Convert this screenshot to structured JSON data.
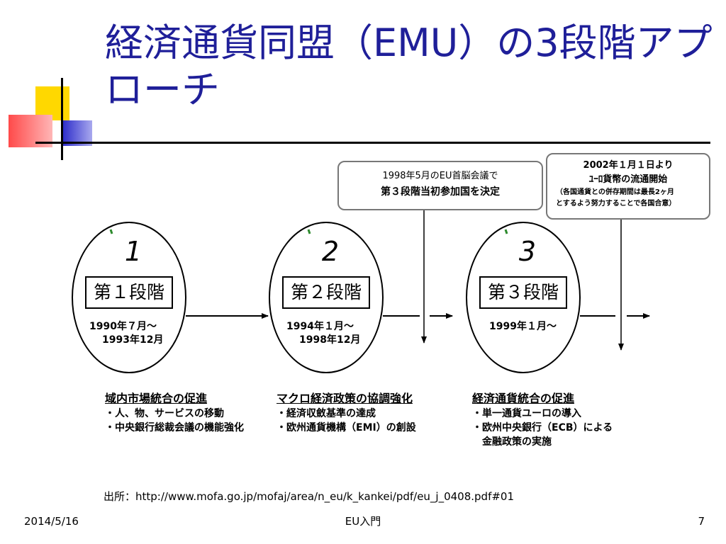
{
  "title": "経済通貨同盟（EMU）の3段階アプローチ",
  "callouts": {
    "c1_line1": "1998年5月のEU首脳会議で",
    "c1_line2": "第３段階当初参加国を決定",
    "c2_line1": "2002年１月１日より",
    "c2_line2": "ﾕｰﾛ貨幣の流通開始",
    "c2_line3": "（各国通貨との併存期間は最長2ヶ月",
    "c2_line4": "とするよう努力することで各国合意）"
  },
  "stages": [
    {
      "number": "1",
      "label": "第１段階",
      "date_line1": "1990年７月～",
      "date_line2": "1993年12月",
      "heading": "域内市場統合の促進",
      "items": [
        "・人、物、サービスの移動",
        "・中央銀行総裁会議の機能強化"
      ]
    },
    {
      "number": "2",
      "label": "第２段階",
      "date_line1": "1994年１月～",
      "date_line2": "1998年12月",
      "heading": "マクロ経済政策の協調強化",
      "items": [
        "・経済収斂基準の達成",
        "・欧州通貨機構（EMI）の創設"
      ]
    },
    {
      "number": "3",
      "label": "第３段階",
      "date_line1": "1999年１月～",
      "date_line2": "",
      "heading": "経済通貨統合の促進",
      "items": [
        "・単一通貨ユーロの導入",
        "・欧州中央銀行（ECB）による",
        "　金融政策の実施"
      ]
    }
  ],
  "source": "出所：http://www.mofa.go.jp/mofaj/area/n_eu/k_kankei/pdf/eu_j_0408.pdf#01",
  "footer": {
    "date": "2014/5/16",
    "center": "EU入門",
    "page": "7"
  },
  "colors": {
    "title": "#1f1f99",
    "deco_yellow": "#ffd800",
    "deco_red": "#ff4a4a",
    "deco_blue": "#2626c8",
    "tick_green": "#2e8b2e"
  }
}
